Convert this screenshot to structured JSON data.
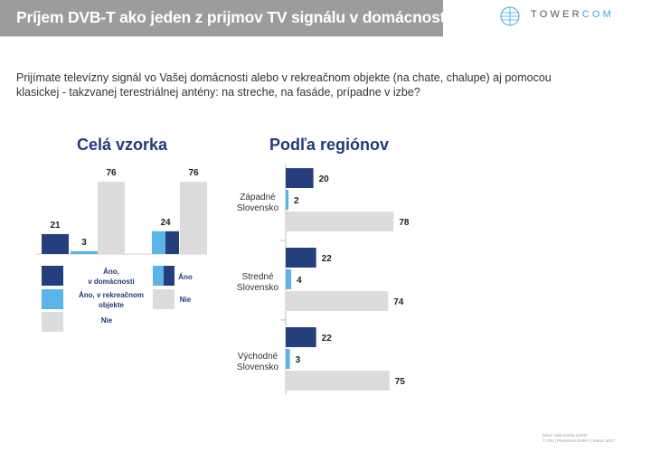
{
  "header": {
    "title": "Príjem DVB-T ako jeden z prijmov TV signálu v domácnosti"
  },
  "logo": {
    "text_main": "TOWER",
    "text_accent": "COM"
  },
  "question": "Prijímate televízny signál vo Vašej domácnosti alebo v rekreačnom objekte (na chate, chalupe) aj pomocou klasickej - takzvanej terestriálnej antény: na streche, na fasáde, prípadne v izbe?",
  "colors": {
    "dark": "#253e7c",
    "light": "#5ab4e8",
    "gray": "#dcdcdc",
    "title_blue": "#1f3b7a"
  },
  "footer": {
    "line1": "Báze: celá vzorka (1000)",
    "line2": "© GfK | Penetrácia DVB-T | Marec 2017"
  },
  "chart_data": [
    {
      "type": "bar",
      "title": "Celá vzorka",
      "groups": [
        {
          "series": [
            {
              "name": "Áno, v domácnosti",
              "value": 21,
              "color": "dark"
            },
            {
              "name": "Áno, v rekreačnom objekte",
              "value": 3,
              "color": "light"
            },
            {
              "name": "Nie",
              "value": 76,
              "color": "gray"
            }
          ]
        },
        {
          "series": [
            {
              "name": "Áno",
              "value": 24,
              "color": "gradient"
            },
            {
              "name": "Nie",
              "value": 76,
              "color": "gray"
            }
          ]
        }
      ],
      "legend": [
        {
          "label": "Áno, v domácnosti",
          "color": "dark"
        },
        {
          "label": "Áno",
          "color": "gradient"
        },
        {
          "label": "Áno, v rekreačnom objekte",
          "color": "light"
        },
        {
          "label": "Nie",
          "color": "gray"
        },
        {
          "label": "Nie",
          "color": "gray"
        }
      ]
    },
    {
      "type": "bar",
      "orientation": "horizontal",
      "title": "Podľa regiónov",
      "categories": [
        "Západné Slovensko",
        "Stredné Slovensko",
        "Východné Slovensko"
      ],
      "series": [
        {
          "name": "Áno, v domácnosti",
          "values": [
            20,
            22,
            22
          ],
          "color": "dark"
        },
        {
          "name": "Áno, v rekreačnom objekte",
          "values": [
            2,
            4,
            3
          ],
          "color": "light"
        },
        {
          "name": "Nie",
          "values": [
            78,
            74,
            75
          ],
          "color": "gray"
        }
      ]
    }
  ]
}
